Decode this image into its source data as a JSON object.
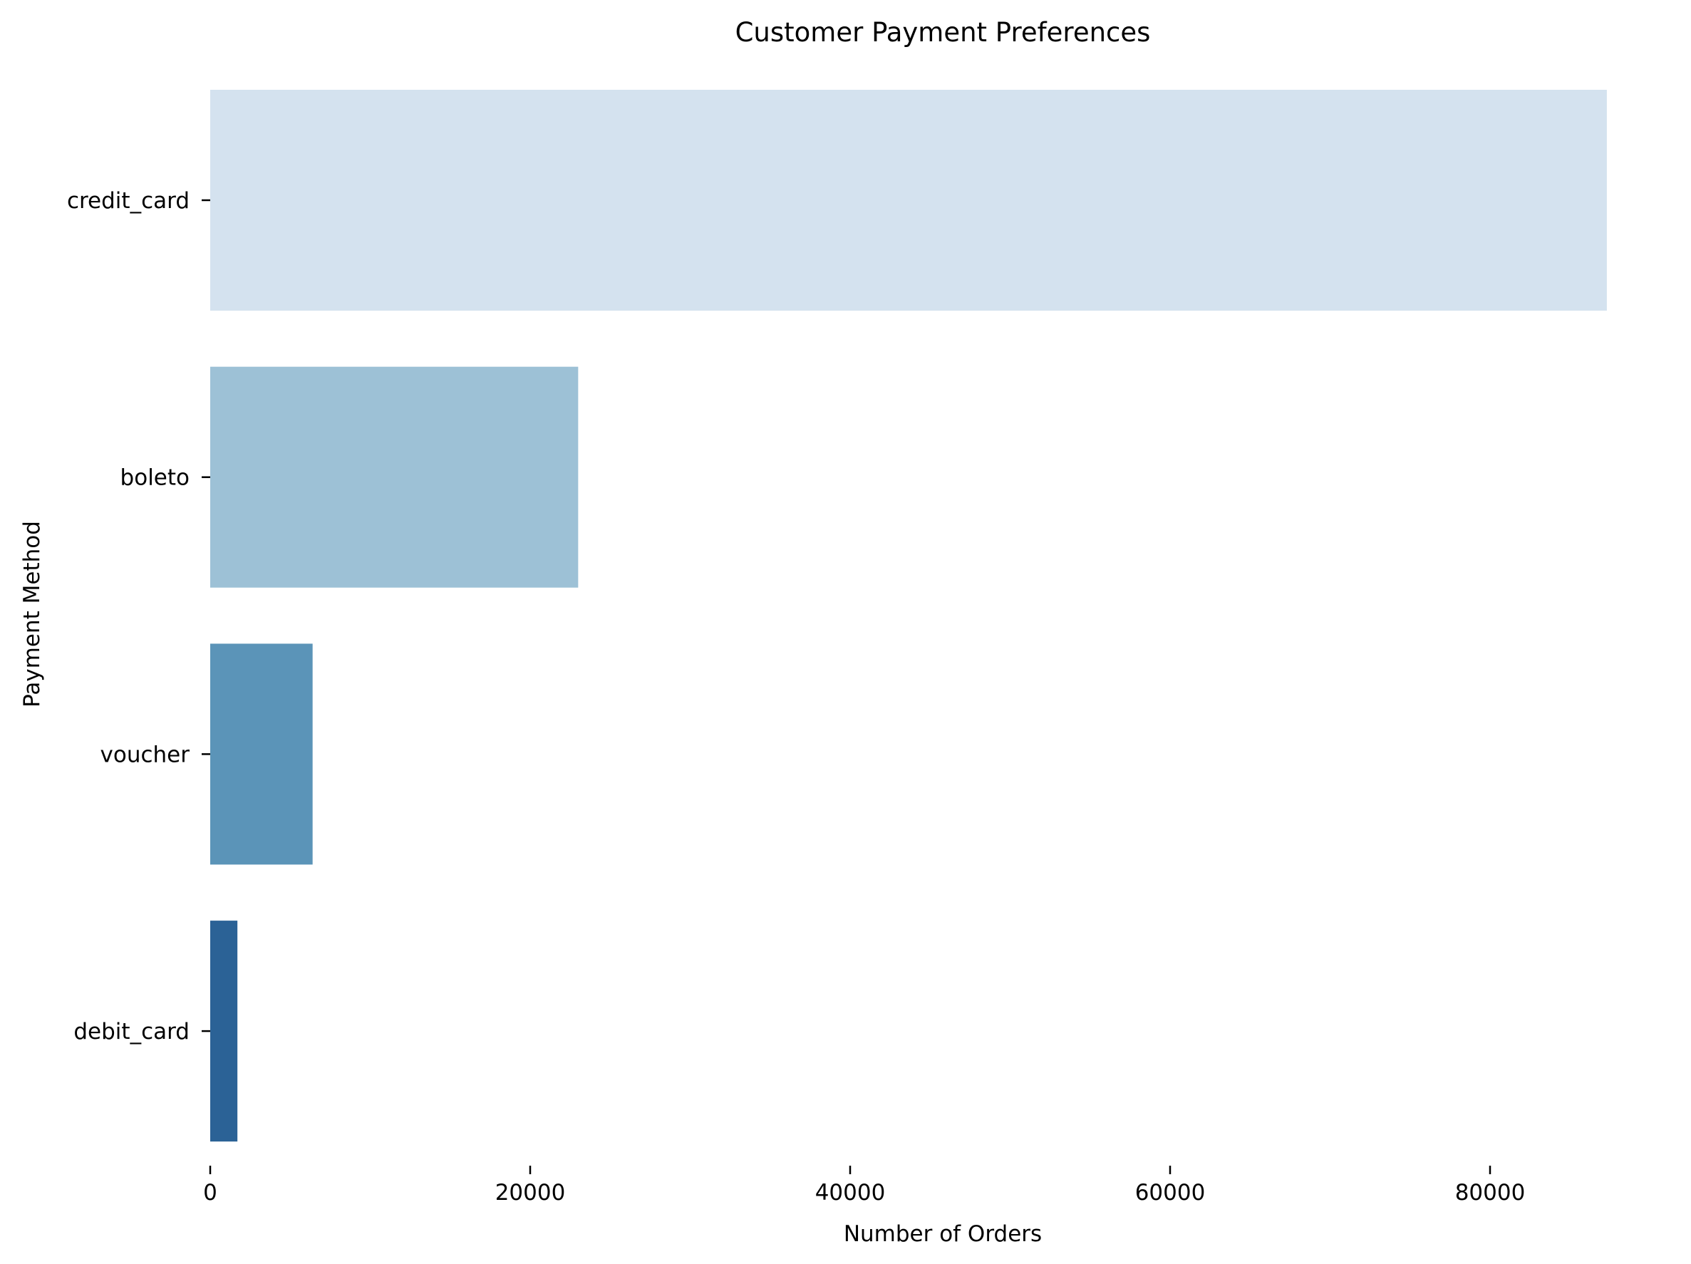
{
  "chart_data": {
    "type": "bar",
    "orientation": "horizontal",
    "title": "Customer Payment Preferences",
    "xlabel": "Number of Orders",
    "ylabel": "Payment Method",
    "categories": [
      "credit_card",
      "boleto",
      "voucher",
      "debit_card"
    ],
    "values": [
      87300,
      23000,
      6400,
      1700
    ],
    "colors": [
      "#d4e2ef",
      "#9dc1d6",
      "#5b94b8",
      "#2b6296"
    ],
    "xlim": [
      0,
      90000
    ],
    "xticks": [
      0,
      20000,
      40000,
      60000,
      80000
    ],
    "xtick_labels": [
      "0",
      "20000",
      "40000",
      "60000",
      "80000"
    ],
    "grid": false,
    "legend": "none"
  }
}
